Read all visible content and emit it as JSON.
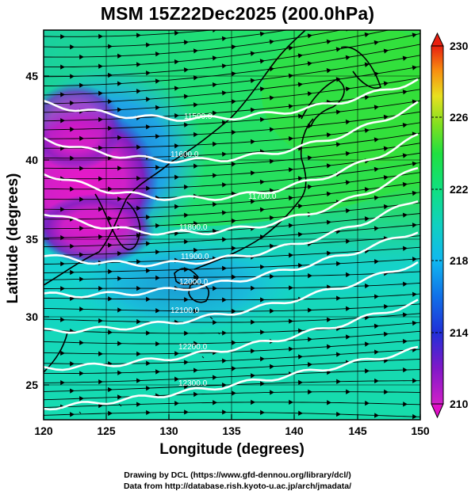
{
  "title": "MSM 15Z22Dec2025 (200.0hPa)",
  "x_axis": {
    "label": "Longitude (degrees)",
    "ticks": [
      "120",
      "125",
      "130",
      "135",
      "140",
      "145",
      "150"
    ],
    "range": [
      120,
      150
    ]
  },
  "y_axis": {
    "label": "Latitude  (degrees)",
    "ticks": [
      "25",
      "30",
      "35",
      "40",
      "45"
    ],
    "range": [
      22.4,
      47.6
    ]
  },
  "colorbar": {
    "ticks": [
      "230",
      "226",
      "222",
      "218",
      "214",
      "210"
    ],
    "range": [
      210,
      230
    ],
    "colors": [
      "#d020c8",
      "#8018c8",
      "#2030d8",
      "#1088f0",
      "#10d0d8",
      "#10e890",
      "#20e040",
      "#80e020",
      "#e8e020",
      "#f8a010",
      "#f05010",
      "#e82010"
    ]
  },
  "contours": {
    "unit": "geopotential height (m)",
    "levels": [
      {
        "value": "11500.0"
      },
      {
        "value": "11600.0"
      },
      {
        "value": "11700.0"
      },
      {
        "value": "11800.0"
      },
      {
        "value": "11900.0"
      },
      {
        "value": "12000.0"
      },
      {
        "value": "12100.0"
      },
      {
        "value": "12200.0"
      },
      {
        "value": "12300.0"
      }
    ]
  },
  "credit_line1": "Drawing by DCL (https://www.gfd-dennou.org/library/dcl/)",
  "credit_line2": "Data from http://database.rish.kyoto-u.ac.jp/arch/jmadata/",
  "chart_data": {
    "type": "heatmap",
    "title": "MSM 15Z22Dec2025 (200.0hPa)",
    "xlabel": "Longitude (degrees)",
    "ylabel": "Latitude  (degrees)",
    "xlim": [
      120,
      150
    ],
    "ylim": [
      22.4,
      47.6
    ],
    "colorbar_range": [
      210,
      230
    ],
    "fields": [
      "temperature (color shading)",
      "wind streamlines (arrows)",
      "height contours (white)"
    ],
    "contour_levels": [
      11500,
      11600,
      11700,
      11800,
      11900,
      12000,
      12100,
      12200,
      12300
    ]
  }
}
